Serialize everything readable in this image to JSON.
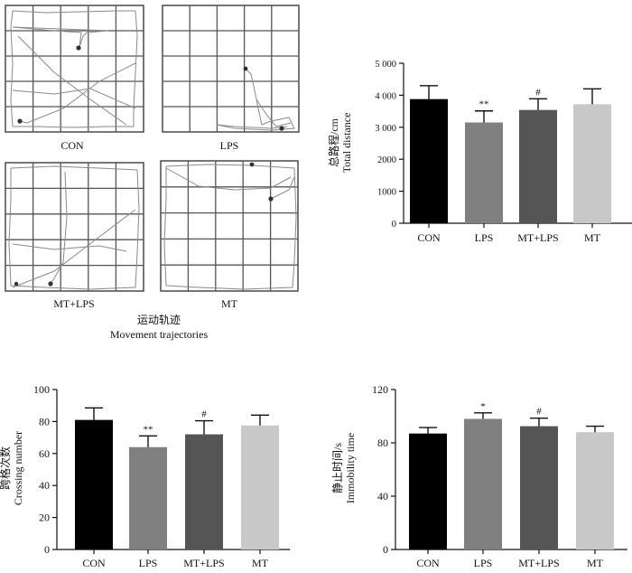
{
  "trajectories": {
    "panels": [
      {
        "label": "CON"
      },
      {
        "label": "LPS"
      },
      {
        "label": "MT+LPS"
      },
      {
        "label": "MT"
      }
    ],
    "caption_cn": "运动轨迹",
    "caption_en": "Movement trajectories"
  },
  "chart_data": [
    {
      "type": "bar",
      "categories": [
        "CON",
        "LPS",
        "MT+LPS",
        "MT"
      ],
      "values": [
        3880,
        3150,
        3540,
        3720
      ],
      "errors": [
        420,
        360,
        350,
        480
      ],
      "markers": [
        "",
        "**",
        "#",
        ""
      ],
      "colors": [
        "#000000",
        "#808080",
        "#555555",
        "#c8c8c8"
      ],
      "ylabel_cn": "总路程/cm",
      "ylabel_en": "Total distance",
      "ylim": [
        0,
        5000
      ],
      "ticks": [
        0,
        1000,
        2000,
        3000,
        4000,
        5000
      ],
      "tick_labels": [
        "0",
        "1000",
        "2000",
        "3 000",
        "4 000",
        "5 000"
      ]
    },
    {
      "type": "bar",
      "categories": [
        "CON",
        "LPS",
        "MT+LPS",
        "MT"
      ],
      "values": [
        81,
        64,
        72,
        77.5
      ],
      "errors": [
        7.5,
        7,
        8.5,
        6.5
      ],
      "markers": [
        "",
        "**",
        "#",
        ""
      ],
      "colors": [
        "#000000",
        "#808080",
        "#555555",
        "#c8c8c8"
      ],
      "ylabel_cn": "跨格次数",
      "ylabel_en": "Crossing number",
      "ylim": [
        0,
        100
      ],
      "ticks": [
        0,
        20,
        40,
        60,
        80,
        100
      ],
      "tick_labels": [
        "0",
        "20",
        "40",
        "60",
        "80",
        "100"
      ]
    },
    {
      "type": "bar",
      "categories": [
        "CON",
        "LPS",
        "MT+LPS",
        "MT"
      ],
      "values": [
        87,
        98,
        92.5,
        88
      ],
      "errors": [
        4.5,
        4.5,
        6,
        4.5
      ],
      "markers": [
        "",
        "*",
        "#",
        ""
      ],
      "colors": [
        "#000000",
        "#808080",
        "#555555",
        "#c8c8c8"
      ],
      "ylabel_cn": "静止时间/s",
      "ylabel_en": "Immobility time",
      "ylim": [
        0,
        120
      ],
      "ticks": [
        0,
        40,
        80,
        120
      ],
      "tick_labels": [
        "0",
        "40",
        "80",
        "120"
      ]
    }
  ]
}
